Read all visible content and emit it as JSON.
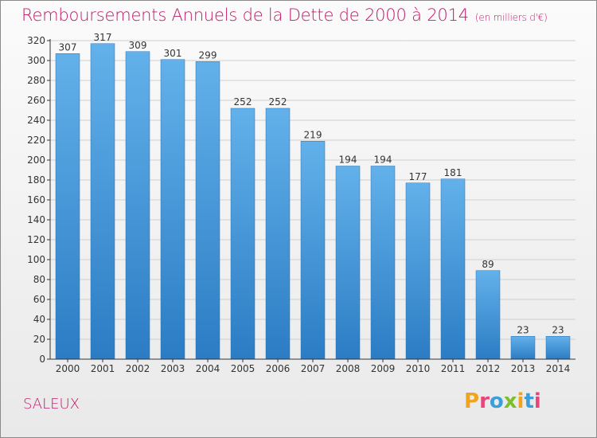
{
  "chart_data": {
    "type": "bar",
    "title": "Remboursements Annuels de la Dette de 2000 à 2014",
    "subtitle": "(en milliers d'€)",
    "categories": [
      "2000",
      "2001",
      "2002",
      "2003",
      "2004",
      "2005",
      "2006",
      "2007",
      "2008",
      "2009",
      "2010",
      "2011",
      "2012",
      "2013",
      "2014"
    ],
    "values": [
      307,
      317,
      309,
      301,
      299,
      252,
      252,
      219,
      194,
      194,
      177,
      181,
      89,
      23,
      23
    ],
    "ylim": [
      0,
      320
    ],
    "yticks": [
      0,
      20,
      40,
      60,
      80,
      100,
      120,
      140,
      160,
      180,
      200,
      220,
      240,
      260,
      280,
      300,
      320
    ],
    "grid": true,
    "legend": "none"
  },
  "footer": {
    "commune": "SALEUX",
    "logo": "Proxiti"
  },
  "colors": {
    "title": "#c0186a",
    "commune": "#c0186a",
    "bar_top": "#63b1ea",
    "bar_bottom": "#2b7cc4",
    "grid": "#cfcfcf",
    "axis": "#333333",
    "logo_letters": [
      "#f0a31c",
      "#e8457a",
      "#3a9fd8",
      "#7cbf2d",
      "#f0a31c",
      "#3a9fd8",
      "#e8457a"
    ]
  }
}
